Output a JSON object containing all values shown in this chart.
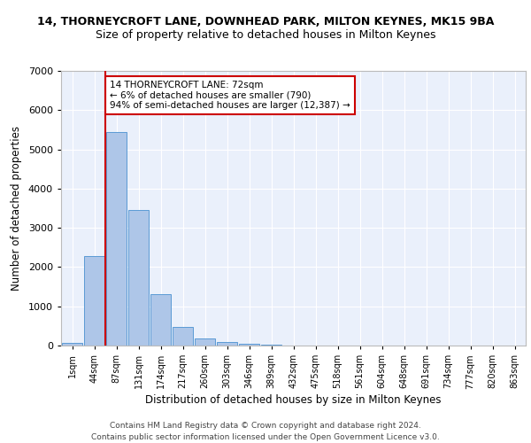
{
  "title1": "14, THORNEYCROFT LANE, DOWNHEAD PARK, MILTON KEYNES, MK15 9BA",
  "title2": "Size of property relative to detached houses in Milton Keynes",
  "xlabel": "Distribution of detached houses by size in Milton Keynes",
  "ylabel": "Number of detached properties",
  "categories": [
    "1sqm",
    "44sqm",
    "87sqm",
    "131sqm",
    "174sqm",
    "217sqm",
    "260sqm",
    "303sqm",
    "346sqm",
    "389sqm",
    "432sqm",
    "475sqm",
    "518sqm",
    "561sqm",
    "604sqm",
    "648sqm",
    "691sqm",
    "734sqm",
    "777sqm",
    "820sqm",
    "863sqm"
  ],
  "values": [
    75,
    2270,
    5450,
    3450,
    1320,
    470,
    170,
    90,
    55,
    30,
    10,
    5,
    0,
    0,
    0,
    0,
    0,
    0,
    0,
    0,
    0
  ],
  "bar_color": "#aec6e8",
  "bar_edge_color": "#5b9bd5",
  "vline_color": "#cc0000",
  "annotation_text": "14 THORNEYCROFT LANE: 72sqm\n← 6% of detached houses are smaller (790)\n94% of semi-detached houses are larger (12,387) →",
  "annotation_box_color": "#ffffff",
  "annotation_box_edge": "#cc0000",
  "ylim": [
    0,
    7000
  ],
  "yticks": [
    0,
    1000,
    2000,
    3000,
    4000,
    5000,
    6000,
    7000
  ],
  "footer": "Contains HM Land Registry data © Crown copyright and database right 2024.\nContains public sector information licensed under the Open Government Licence v3.0.",
  "background_color": "#eaf0fb",
  "grid_color": "#ffffff",
  "title1_fontsize": 9,
  "title2_fontsize": 9,
  "xlabel_fontsize": 8.5,
  "ylabel_fontsize": 8.5,
  "footer_fontsize": 6.5,
  "tick_fontsize": 7,
  "annot_fontsize": 7.5
}
